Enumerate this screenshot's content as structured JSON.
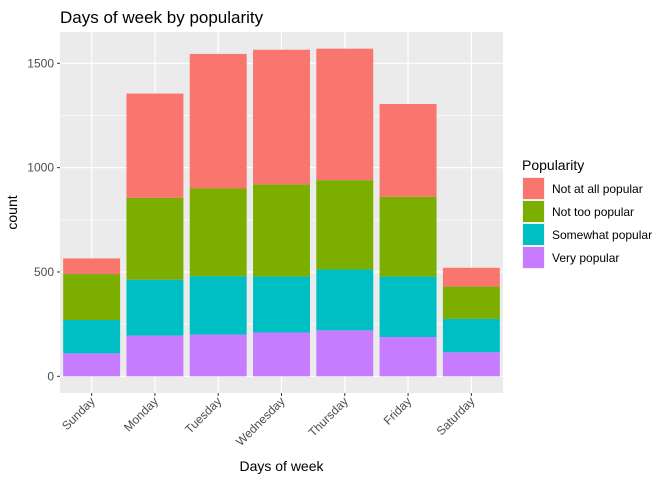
{
  "chart_data": {
    "type": "bar",
    "stacked": true,
    "title": "Days of week by popularity",
    "xlabel": "Days of week",
    "ylabel": "count",
    "ylim": [
      -80,
      1650
    ],
    "yticks": [
      0,
      500,
      1000,
      1500
    ],
    "categories": [
      "Sunday",
      "Monday",
      "Tuesday",
      "Wednesday",
      "Thursday",
      "Friday",
      "Saturday"
    ],
    "legend": {
      "title": "Popularity",
      "placement": "right"
    },
    "series": [
      {
        "name": "Very popular",
        "color": "#C77CFF",
        "values": [
          110,
          195,
          200,
          210,
          220,
          188,
          115
        ]
      },
      {
        "name": "Somewhat popular",
        "color": "#00BFC4",
        "values": [
          160,
          268,
          280,
          268,
          292,
          290,
          160
        ]
      },
      {
        "name": "Not too popular",
        "color": "#7CAE00",
        "values": [
          220,
          392,
          420,
          442,
          428,
          382,
          155
        ]
      },
      {
        "name": "Not at all popular",
        "color": "#F8766D",
        "values": [
          75,
          500,
          645,
          645,
          630,
          445,
          90
        ]
      }
    ],
    "legend_order": [
      "Not at all popular",
      "Not too popular",
      "Somewhat popular",
      "Very popular"
    ],
    "grid": true,
    "panel_color": "#EBEBEB",
    "grid_color": "#FFFFFF"
  }
}
